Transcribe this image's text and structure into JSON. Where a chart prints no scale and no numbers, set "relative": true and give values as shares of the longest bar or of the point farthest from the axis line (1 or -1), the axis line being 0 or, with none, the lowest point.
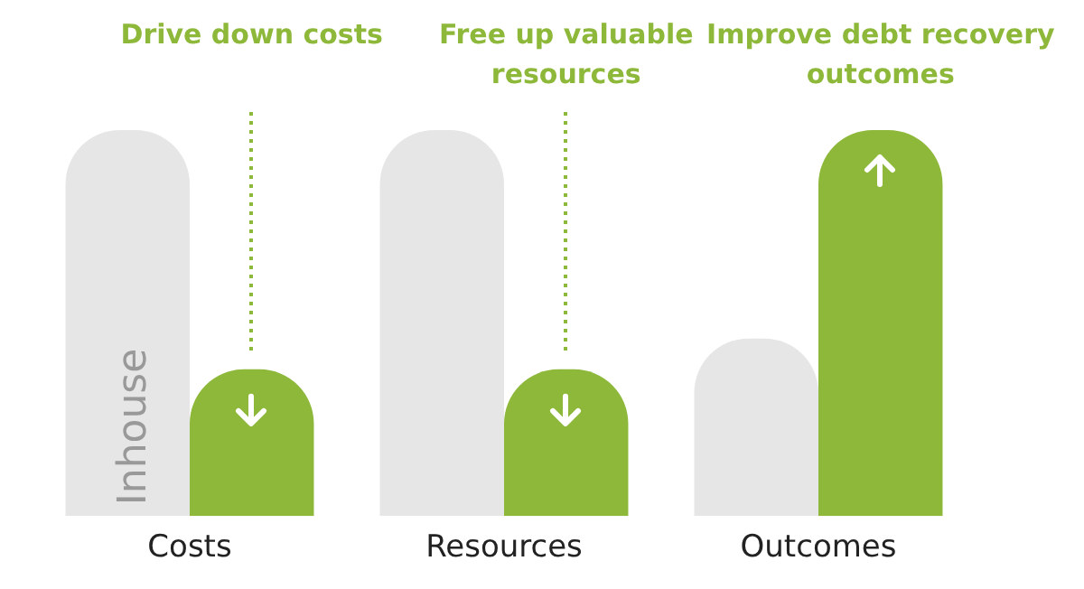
{
  "chart_data": {
    "type": "bar",
    "relative": true,
    "categories": [
      "Costs",
      "Resources",
      "Outcomes"
    ],
    "series": [
      {
        "name": "Inhouse",
        "color": "#e6e6e6",
        "values": [
          1,
          1,
          0.46
        ]
      },
      {
        "color": "#8db83a",
        "values": [
          0.38,
          0.38,
          1
        ]
      }
    ],
    "annotations": [
      "Drive down costs",
      "Free up valuable resources",
      "Improve debt recovery outcomes"
    ],
    "legend": false,
    "grid": false
  }
}
